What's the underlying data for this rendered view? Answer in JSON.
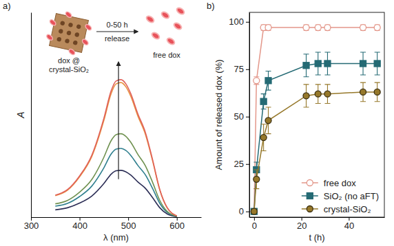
{
  "chart_data": [
    {
      "type": "line",
      "panel_label": "a)",
      "x_label": "λ (nm)",
      "y_label": "A",
      "annotations": [
        "dox @ crystal-SiO₂",
        "0-50 h release",
        "free dox"
      ],
      "x": [
        350,
        375,
        400,
        425,
        450,
        465,
        475,
        485,
        495,
        505,
        520,
        535,
        550,
        565,
        580,
        600
      ],
      "xlim": [
        300,
        650
      ],
      "xticks": [
        300,
        400,
        500,
        600
      ],
      "ylim": [
        0,
        1.4
      ],
      "tick_labels": "x",
      "series": [
        {
          "color": "#2b2d55",
          "values": [
            0.05,
            0.064,
            0.096,
            0.144,
            0.23,
            0.294,
            0.317,
            0.32,
            0.31,
            0.288,
            0.24,
            0.198,
            0.134,
            0.064,
            0.022,
            0.003
          ]
        },
        {
          "color": "#2f7f8e",
          "values": [
            0.075,
            0.094,
            0.141,
            0.212,
            0.338,
            0.432,
            0.465,
            0.47,
            0.456,
            0.423,
            0.353,
            0.291,
            0.197,
            0.094,
            0.033,
            0.005
          ]
        },
        {
          "color": "#6f9150",
          "values": [
            0.091,
            0.114,
            0.171,
            0.257,
            0.41,
            0.524,
            0.564,
            0.57,
            0.553,
            0.513,
            0.428,
            0.353,
            0.239,
            0.114,
            0.04,
            0.006
          ]
        },
        {
          "color": "#e8913f",
          "values": [
            0.147,
            0.184,
            0.276,
            0.414,
            0.662,
            0.846,
            0.911,
            0.92,
            0.892,
            0.828,
            0.69,
            0.57,
            0.386,
            0.184,
            0.064,
            0.009
          ]
        },
        {
          "color": "#e0605a",
          "values": [
            0.15,
            0.188,
            0.282,
            0.423,
            0.677,
            0.865,
            0.931,
            0.94,
            0.912,
            0.846,
            0.705,
            0.583,
            0.395,
            0.188,
            0.066,
            0.009
          ]
        }
      ]
    },
    {
      "type": "line",
      "panel_label": "b)",
      "x_label": "t (h)",
      "y_label": "Amount of released dox (%)",
      "x": [
        0,
        1,
        4,
        6,
        22,
        27,
        31,
        46,
        52
      ],
      "xlim": [
        -2,
        55
      ],
      "xticks": [
        0,
        20,
        40
      ],
      "ylim": [
        -3,
        105
      ],
      "yticks": [
        0,
        25,
        50,
        75,
        100
      ],
      "legend": "bottom-right",
      "series": [
        {
          "name": "free dox",
          "color": "#e3978a",
          "marker": "circle-open",
          "values": [
            0,
            69,
            97,
            97,
            97,
            97,
            97,
            97,
            97
          ],
          "errors": [
            0,
            2,
            1.5,
            1.5,
            1.5,
            1.5,
            1.5,
            1.5,
            1.5
          ]
        },
        {
          "name": "SiO₂ (no aFT)",
          "color": "#246a74",
          "marker": "square",
          "values": [
            0,
            22,
            58,
            69,
            77,
            78,
            78,
            78,
            78
          ],
          "errors": [
            0,
            4,
            4,
            5,
            6,
            6,
            6,
            6,
            6
          ]
        },
        {
          "name": "crystal-SiO₂",
          "color": "#96782a",
          "marker": "circle",
          "values": [
            0,
            17,
            39,
            48,
            61,
            62,
            62,
            63,
            63
          ],
          "errors": [
            0,
            5,
            7,
            7,
            6,
            5,
            5,
            5,
            5
          ]
        }
      ]
    }
  ]
}
